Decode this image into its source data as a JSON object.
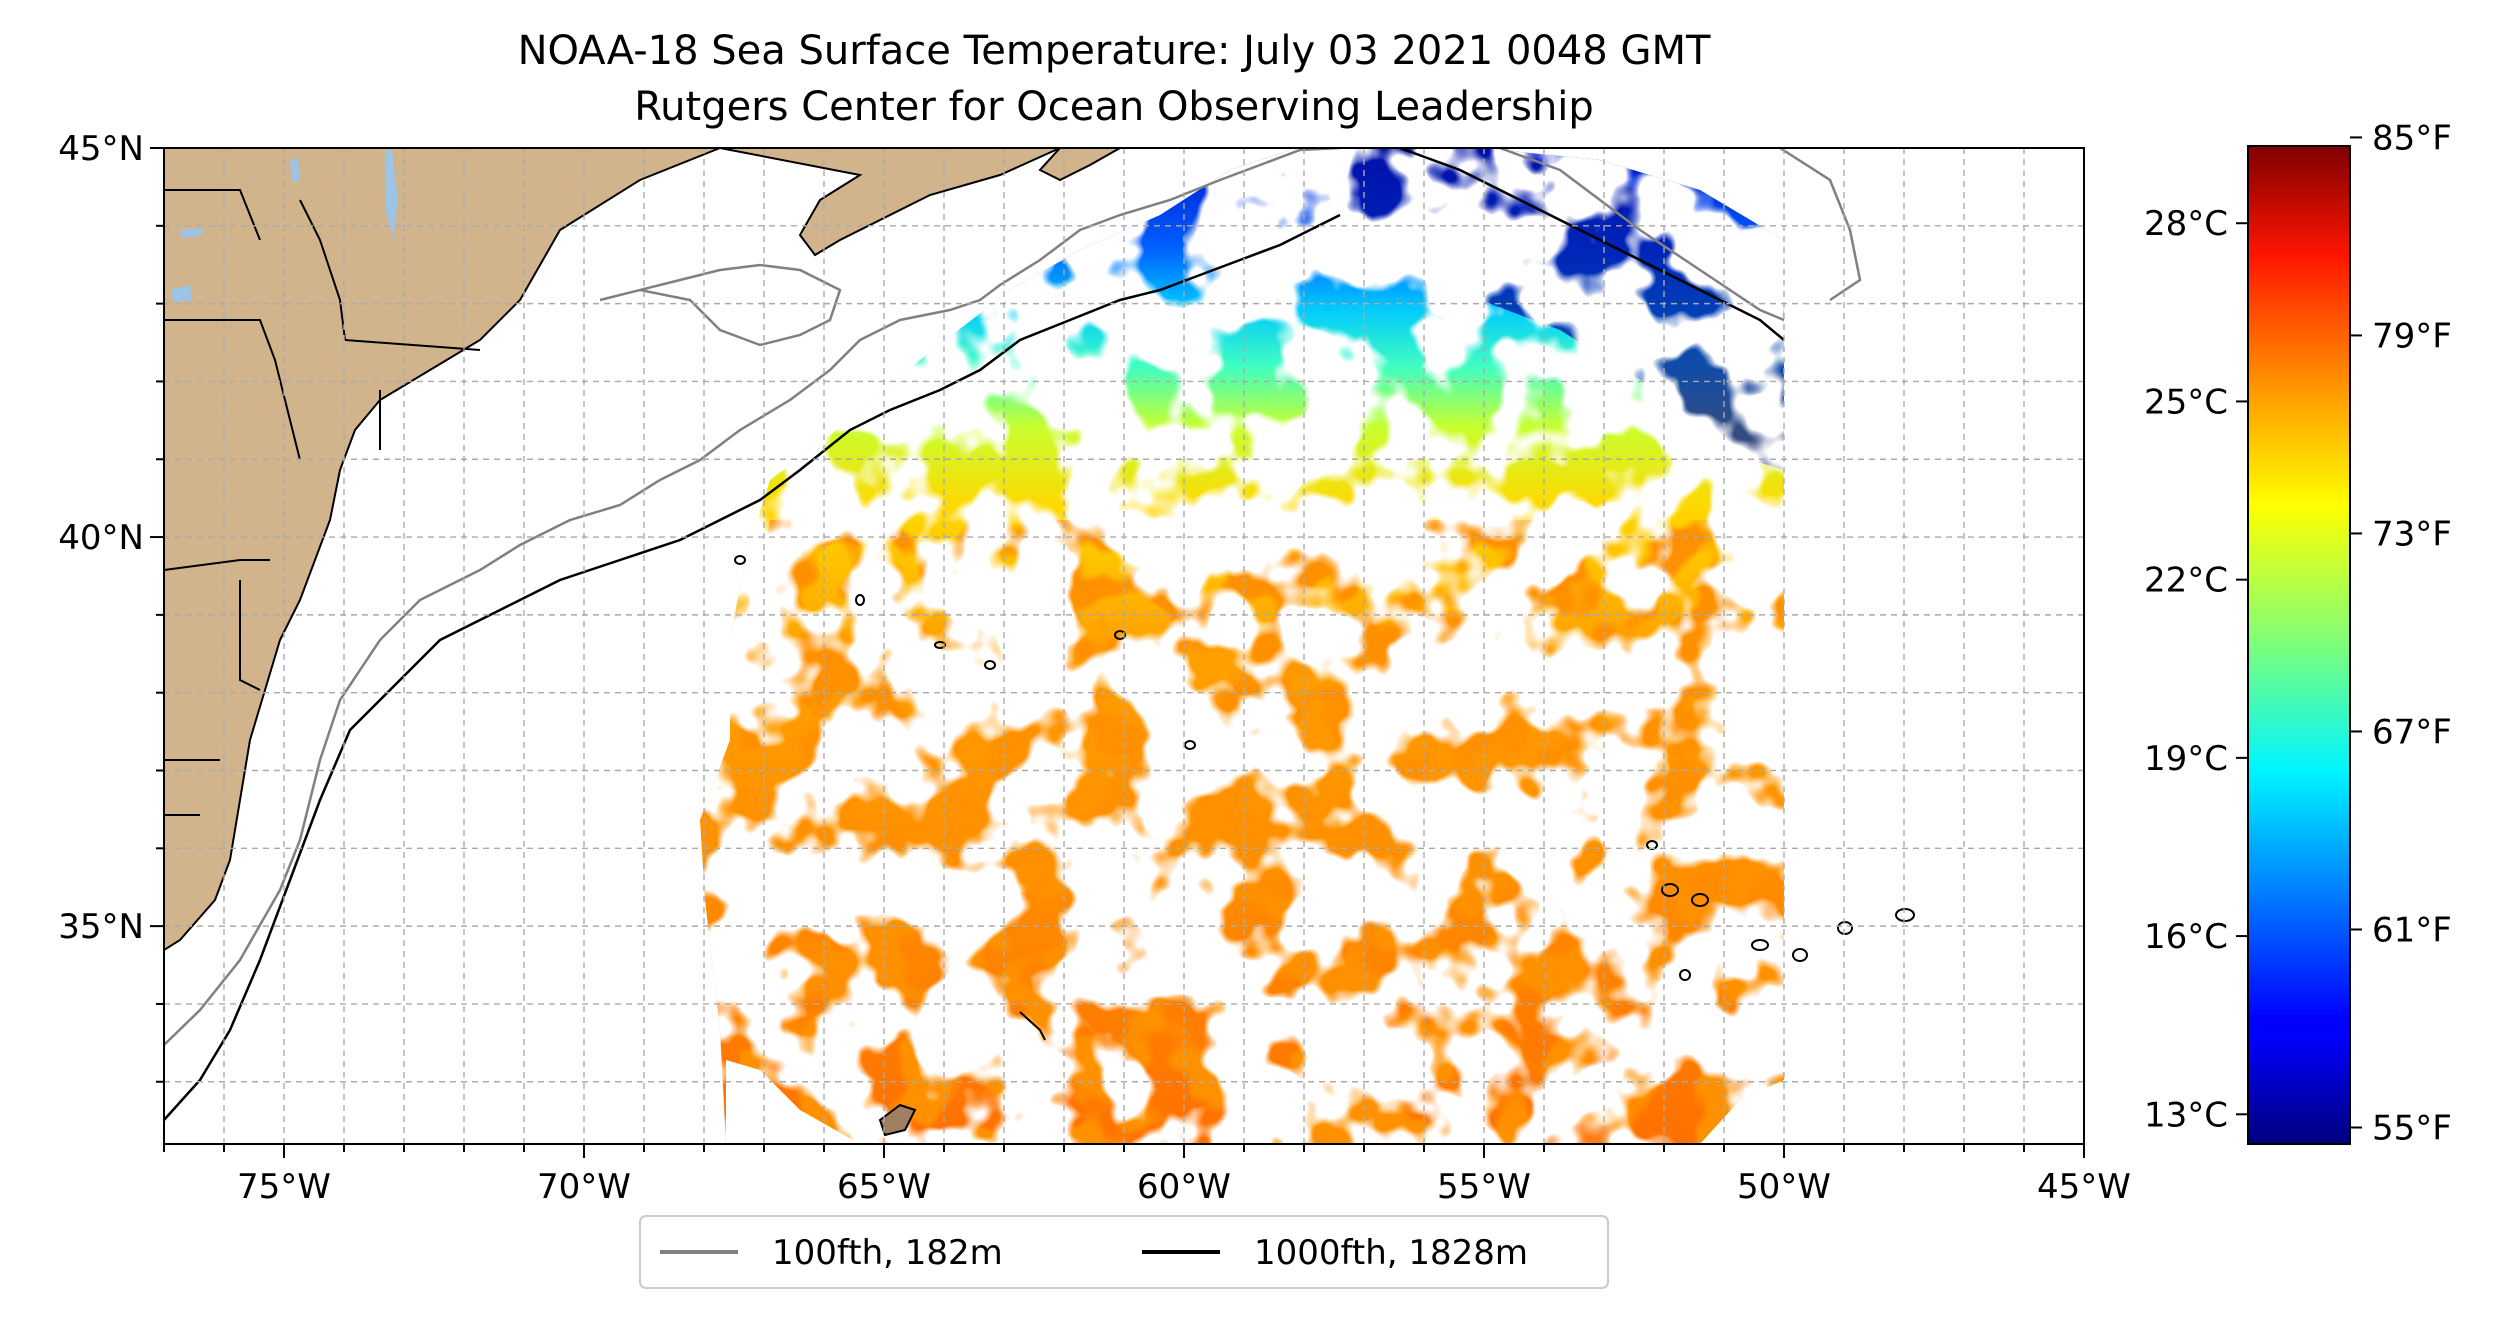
{
  "title": {
    "line1": "NOAA-18 Sea Surface Temperature: July 03 2021 0048 GMT",
    "line2": "Rutgers Center for Ocean Observing Leadership"
  },
  "map": {
    "lon_range": [
      -77,
      -45
    ],
    "lat_range": [
      32.2,
      45
    ],
    "lon_ticks": [
      {
        "value": -75,
        "label": "75°W"
      },
      {
        "value": -70,
        "label": "70°W"
      },
      {
        "value": -65,
        "label": "65°W"
      },
      {
        "value": -60,
        "label": "60°W"
      },
      {
        "value": -55,
        "label": "55°W"
      },
      {
        "value": -50,
        "label": "50°W"
      },
      {
        "value": -45,
        "label": "45°W"
      }
    ],
    "lat_ticks": [
      {
        "value": 45,
        "label": "45°N"
      },
      {
        "value": 40,
        "label": "40°N"
      },
      {
        "value": 35,
        "label": "35°N"
      }
    ],
    "grid": true,
    "grid_style": "dashed",
    "land_color": "#d2b48c",
    "lake_color": "#9dc3e6",
    "data_extent_lon": [
      -67.5,
      -50
    ]
  },
  "legend": {
    "placement": "bottom-center",
    "items": [
      {
        "label": "100fth, 182m",
        "color": "#808080"
      },
      {
        "label": "1000fth, 1828m",
        "color": "#000000"
      }
    ]
  },
  "colorbar": {
    "colormap": "jet",
    "range_c": [
      12.5,
      29.3
    ],
    "celsius_ticks": [
      {
        "value": 28,
        "label": "28°C"
      },
      {
        "value": 25,
        "label": "25°C"
      },
      {
        "value": 22,
        "label": "22°C"
      },
      {
        "value": 19,
        "label": "19°C"
      },
      {
        "value": 16,
        "label": "16°C"
      },
      {
        "value": 13,
        "label": "13°C"
      }
    ],
    "fahrenheit_ticks": [
      {
        "value": 85,
        "label": "85°F"
      },
      {
        "value": 79,
        "label": "79°F"
      },
      {
        "value": 73,
        "label": "73°F"
      },
      {
        "value": 67,
        "label": "67°F"
      },
      {
        "value": 61,
        "label": "61°F"
      },
      {
        "value": 55,
        "label": "55°F"
      }
    ]
  }
}
